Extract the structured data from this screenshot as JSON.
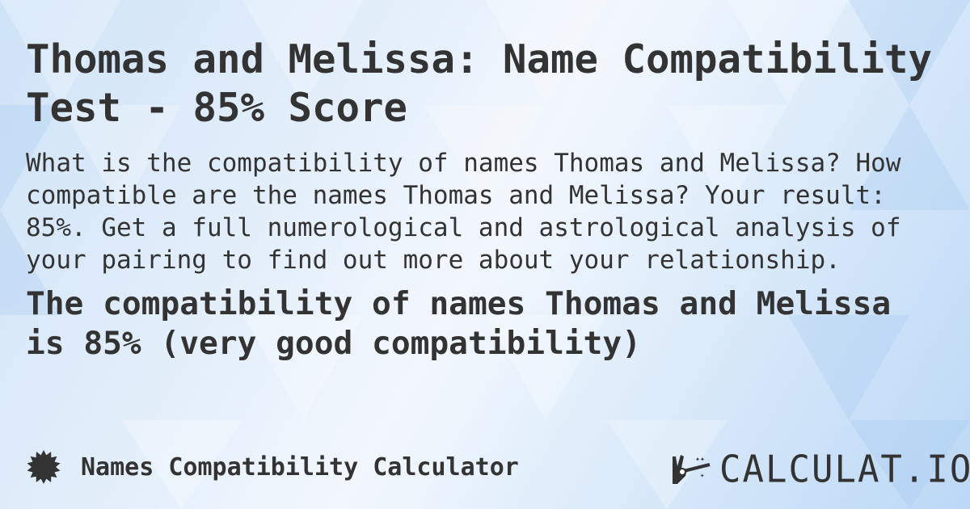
{
  "title": "Thomas and Melissa: Name Compatibility Test - 85% Score",
  "description": "What is the compatibility of names Thomas and Melissa? How compatible are the names Thomas and Melissa? Your result: 85%. Get a full numerological and astrological analysis of your pairing to find out more about your relationship.",
  "result": "The compatibility of names Thomas and Melissa is 85% (very good compatibility)",
  "footer": {
    "calculator_name": "Names Compatibility Calculator",
    "icon": "badge-star-icon"
  },
  "logo": {
    "text": "CALCULAT.IO",
    "icon": "magic-wand-hand-icon"
  },
  "colors": {
    "text": "#333333",
    "background": "#dcebfa"
  }
}
